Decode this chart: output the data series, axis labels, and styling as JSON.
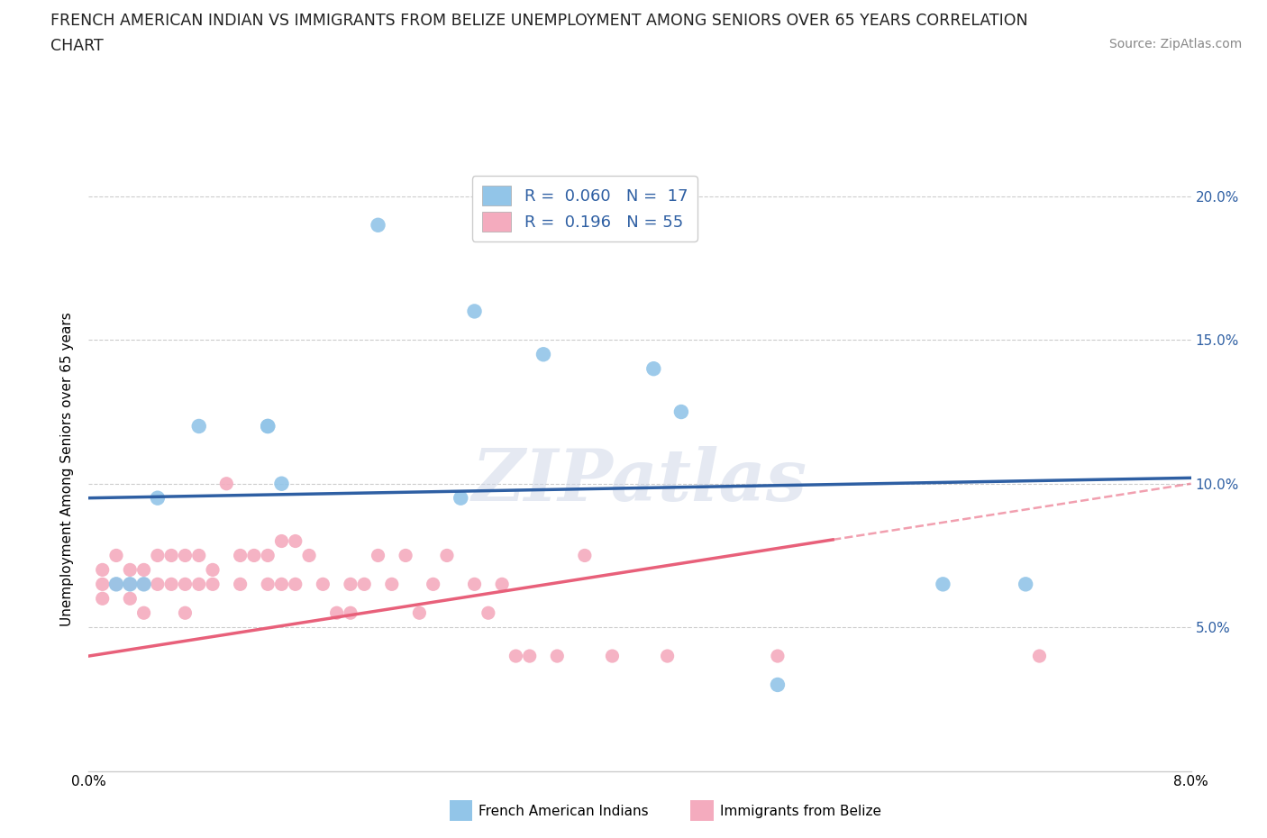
{
  "title_line1": "FRENCH AMERICAN INDIAN VS IMMIGRANTS FROM BELIZE UNEMPLOYMENT AMONG SENIORS OVER 65 YEARS CORRELATION",
  "title_line2": "CHART",
  "source_text": "Source: ZipAtlas.com",
  "ylabel": "Unemployment Among Seniors over 65 years",
  "xmin": 0.0,
  "xmax": 0.08,
  "ymin": 0.0,
  "ymax": 0.21,
  "blue_color": "#92C5E8",
  "pink_color": "#F4ABBE",
  "blue_line_color": "#2E5FA3",
  "pink_line_color": "#E8607A",
  "watermark": "ZIPatlas",
  "blue_scatter_x": [
    0.021,
    0.028,
    0.033,
    0.041,
    0.005,
    0.008,
    0.013,
    0.013,
    0.014,
    0.027,
    0.043,
    0.05,
    0.062,
    0.002,
    0.003,
    0.004,
    0.068
  ],
  "blue_scatter_y": [
    0.19,
    0.16,
    0.145,
    0.14,
    0.095,
    0.12,
    0.12,
    0.12,
    0.1,
    0.095,
    0.125,
    0.03,
    0.065,
    0.065,
    0.065,
    0.065,
    0.065
  ],
  "pink_scatter_x": [
    0.001,
    0.001,
    0.001,
    0.002,
    0.002,
    0.003,
    0.003,
    0.003,
    0.004,
    0.004,
    0.004,
    0.005,
    0.005,
    0.006,
    0.006,
    0.007,
    0.007,
    0.007,
    0.008,
    0.008,
    0.009,
    0.009,
    0.01,
    0.011,
    0.011,
    0.012,
    0.013,
    0.013,
    0.014,
    0.014,
    0.015,
    0.015,
    0.016,
    0.017,
    0.018,
    0.019,
    0.019,
    0.02,
    0.021,
    0.022,
    0.023,
    0.024,
    0.025,
    0.026,
    0.028,
    0.029,
    0.03,
    0.031,
    0.032,
    0.034,
    0.036,
    0.038,
    0.042,
    0.05,
    0.069
  ],
  "pink_scatter_y": [
    0.07,
    0.065,
    0.06,
    0.075,
    0.065,
    0.07,
    0.065,
    0.06,
    0.07,
    0.065,
    0.055,
    0.075,
    0.065,
    0.075,
    0.065,
    0.075,
    0.065,
    0.055,
    0.075,
    0.065,
    0.07,
    0.065,
    0.1,
    0.075,
    0.065,
    0.075,
    0.065,
    0.075,
    0.08,
    0.065,
    0.08,
    0.065,
    0.075,
    0.065,
    0.055,
    0.065,
    0.055,
    0.065,
    0.075,
    0.065,
    0.075,
    0.055,
    0.065,
    0.075,
    0.065,
    0.055,
    0.065,
    0.04,
    0.04,
    0.04,
    0.075,
    0.04,
    0.04,
    0.04,
    0.04
  ],
  "blue_line_x0": 0.0,
  "blue_line_x1": 0.08,
  "blue_line_y0": 0.095,
  "blue_line_y1": 0.102,
  "pink_line_x0": 0.0,
  "pink_line_solid_x1": 0.054,
  "pink_line_x1": 0.08,
  "pink_line_y0": 0.04,
  "pink_line_y1": 0.1
}
